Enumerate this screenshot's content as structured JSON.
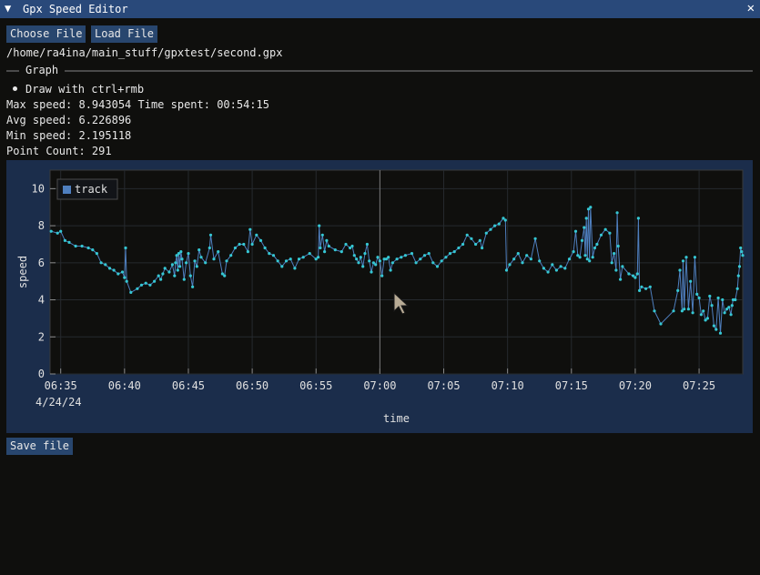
{
  "window": {
    "title": "Gpx Speed Editor",
    "collapse_icon": "triangle-down-icon",
    "close_icon": "close-icon"
  },
  "toolbar": {
    "choose_label": "Choose File",
    "load_label": "Load File"
  },
  "file_path": "/home/ra4ina/main_stuff/gpxtest/second.gpx",
  "section": {
    "label": "Graph"
  },
  "hint": "Draw with ctrl+rmb",
  "stats": {
    "max_line": "Max speed: 8.943054 Time spent: 00:54:15",
    "avg_line": "Avg speed: 6.226896",
    "min_line": "Min speed: 2.195118",
    "count_line": "Point Count: 291"
  },
  "save_label": "Save file",
  "colors": {
    "titlebar": "#29497a",
    "button": "#28466e",
    "plot_frame": "#1b2d4b",
    "plot_bg": "#0f0f0d",
    "line": "#4f7fbf",
    "marker": "#35c7d3"
  },
  "chart_data": {
    "type": "line",
    "xlabel": "time",
    "ylabel": "speed",
    "date_label": "4/24/24",
    "legend": {
      "entries": [
        "track"
      ],
      "placement": "top-left"
    },
    "grid": true,
    "x_tick_labels": [
      "06:35",
      "06:40",
      "06:45",
      "06:50",
      "06:55",
      "07:00",
      "07:05",
      "07:10",
      "07:15",
      "07:20",
      "07:25"
    ],
    "y_tick_labels": [
      "0",
      "2",
      "4",
      "6",
      "8",
      "10"
    ],
    "xlim": [
      "06:34:10",
      "07:28:25"
    ],
    "ylim": [
      0,
      11
    ],
    "series": [
      {
        "name": "track",
        "points": [
          [
            "06:34:15",
            7.7
          ],
          [
            "06:34:45",
            7.6
          ],
          [
            "06:35:00",
            7.7
          ],
          [
            "06:35:20",
            7.2
          ],
          [
            "06:35:40",
            7.1
          ],
          [
            "06:36:10",
            6.9
          ],
          [
            "06:36:40",
            6.9
          ],
          [
            "06:37:10",
            6.8
          ],
          [
            "06:37:30",
            6.7
          ],
          [
            "06:37:50",
            6.5
          ],
          [
            "06:38:10",
            6.0
          ],
          [
            "06:38:30",
            5.9
          ],
          [
            "06:38:50",
            5.7
          ],
          [
            "06:39:10",
            5.6
          ],
          [
            "06:39:30",
            5.4
          ],
          [
            "06:39:50",
            5.5
          ],
          [
            "06:40:00",
            5.2
          ],
          [
            "06:40:05",
            6.8
          ],
          [
            "06:40:10",
            5.0
          ],
          [
            "06:40:30",
            4.4
          ],
          [
            "06:41:00",
            4.6
          ],
          [
            "06:41:20",
            4.8
          ],
          [
            "06:41:40",
            4.9
          ],
          [
            "06:42:00",
            4.8
          ],
          [
            "06:42:20",
            5.0
          ],
          [
            "06:42:40",
            5.3
          ],
          [
            "06:42:50",
            5.1
          ],
          [
            "06:43:00",
            5.4
          ],
          [
            "06:43:10",
            5.7
          ],
          [
            "06:43:30",
            5.5
          ],
          [
            "06:43:45",
            5.9
          ],
          [
            "06:43:55",
            5.3
          ],
          [
            "06:44:00",
            6.0
          ],
          [
            "06:44:05",
            6.4
          ],
          [
            "06:44:10",
            5.6
          ],
          [
            "06:44:15",
            6.5
          ],
          [
            "06:44:20",
            5.8
          ],
          [
            "06:44:25",
            6.6
          ],
          [
            "06:44:30",
            6.2
          ],
          [
            "06:44:40",
            5.1
          ],
          [
            "06:44:50",
            6.0
          ],
          [
            "06:45:00",
            6.5
          ],
          [
            "06:45:10",
            5.3
          ],
          [
            "06:45:20",
            4.7
          ],
          [
            "06:45:30",
            6.1
          ],
          [
            "06:45:40",
            5.8
          ],
          [
            "06:45:50",
            6.7
          ],
          [
            "06:46:00",
            6.3
          ],
          [
            "06:46:20",
            6.0
          ],
          [
            "06:46:40",
            6.8
          ],
          [
            "06:46:45",
            7.5
          ],
          [
            "06:47:00",
            6.2
          ],
          [
            "06:47:20",
            6.6
          ],
          [
            "06:47:40",
            5.4
          ],
          [
            "06:47:50",
            5.3
          ],
          [
            "06:48:00",
            6.1
          ],
          [
            "06:48:20",
            6.4
          ],
          [
            "06:48:40",
            6.8
          ],
          [
            "06:49:00",
            7.0
          ],
          [
            "06:49:20",
            7.0
          ],
          [
            "06:49:40",
            6.6
          ],
          [
            "06:49:50",
            7.8
          ],
          [
            "06:50:00",
            7.0
          ],
          [
            "06:50:20",
            7.5
          ],
          [
            "06:50:40",
            7.2
          ],
          [
            "06:51:00",
            6.8
          ],
          [
            "06:51:20",
            6.5
          ],
          [
            "06:51:40",
            6.4
          ],
          [
            "06:52:00",
            6.1
          ],
          [
            "06:52:20",
            5.8
          ],
          [
            "06:52:40",
            6.1
          ],
          [
            "06:53:00",
            6.2
          ],
          [
            "06:53:20",
            5.7
          ],
          [
            "06:53:40",
            6.2
          ],
          [
            "06:54:00",
            6.3
          ],
          [
            "06:54:30",
            6.5
          ],
          [
            "06:55:00",
            6.2
          ],
          [
            "06:55:10",
            6.3
          ],
          [
            "06:55:15",
            8.0
          ],
          [
            "06:55:20",
            6.8
          ],
          [
            "06:55:30",
            7.5
          ],
          [
            "06:55:40",
            6.6
          ],
          [
            "06:55:50",
            7.2
          ],
          [
            "06:56:00",
            6.9
          ],
          [
            "06:56:30",
            6.7
          ],
          [
            "06:57:00",
            6.6
          ],
          [
            "06:57:20",
            7.0
          ],
          [
            "06:57:40",
            6.8
          ],
          [
            "06:57:50",
            6.9
          ],
          [
            "06:58:00",
            6.4
          ],
          [
            "06:58:10",
            6.2
          ],
          [
            "06:58:20",
            6.0
          ],
          [
            "06:58:30",
            6.3
          ],
          [
            "06:58:40",
            5.8
          ],
          [
            "06:58:50",
            6.5
          ],
          [
            "06:59:00",
            7.0
          ],
          [
            "06:59:10",
            6.1
          ],
          [
            "06:59:20",
            5.5
          ],
          [
            "06:59:30",
            6.0
          ],
          [
            "06:59:40",
            5.9
          ],
          [
            "06:59:50",
            6.3
          ],
          [
            "07:00:00",
            6.1
          ],
          [
            "07:00:10",
            5.3
          ],
          [
            "07:00:20",
            6.2
          ],
          [
            "07:00:30",
            6.2
          ],
          [
            "07:00:40",
            6.3
          ],
          [
            "07:00:50",
            5.6
          ],
          [
            "07:01:00",
            6.0
          ],
          [
            "07:01:20",
            6.2
          ],
          [
            "07:01:40",
            6.3
          ],
          [
            "07:02:00",
            6.4
          ],
          [
            "07:02:30",
            6.5
          ],
          [
            "07:02:50",
            6.0
          ],
          [
            "07:03:10",
            6.2
          ],
          [
            "07:03:30",
            6.4
          ],
          [
            "07:03:50",
            6.5
          ],
          [
            "07:04:10",
            6.0
          ],
          [
            "07:04:30",
            5.8
          ],
          [
            "07:04:50",
            6.1
          ],
          [
            "07:05:10",
            6.3
          ],
          [
            "07:05:30",
            6.5
          ],
          [
            "07:05:50",
            6.6
          ],
          [
            "07:06:10",
            6.8
          ],
          [
            "07:06:30",
            7.0
          ],
          [
            "07:06:50",
            7.5
          ],
          [
            "07:07:10",
            7.3
          ],
          [
            "07:07:30",
            7.0
          ],
          [
            "07:07:50",
            7.2
          ],
          [
            "07:08:00",
            6.8
          ],
          [
            "07:08:20",
            7.6
          ],
          [
            "07:08:40",
            7.8
          ],
          [
            "07:09:00",
            8.0
          ],
          [
            "07:09:20",
            8.1
          ],
          [
            "07:09:40",
            8.4
          ],
          [
            "07:09:50",
            8.3
          ],
          [
            "07:09:55",
            5.6
          ],
          [
            "07:10:10",
            5.9
          ],
          [
            "07:10:30",
            6.2
          ],
          [
            "07:10:50",
            6.5
          ],
          [
            "07:11:10",
            6.0
          ],
          [
            "07:11:30",
            6.4
          ],
          [
            "07:11:50",
            6.2
          ],
          [
            "07:12:10",
            7.3
          ],
          [
            "07:12:30",
            6.1
          ],
          [
            "07:12:50",
            5.7
          ],
          [
            "07:13:10",
            5.5
          ],
          [
            "07:13:30",
            5.9
          ],
          [
            "07:13:50",
            5.6
          ],
          [
            "07:14:10",
            5.8
          ],
          [
            "07:14:30",
            5.7
          ],
          [
            "07:14:50",
            6.2
          ],
          [
            "07:15:10",
            6.6
          ],
          [
            "07:15:20",
            7.7
          ],
          [
            "07:15:30",
            6.4
          ],
          [
            "07:15:40",
            6.3
          ],
          [
            "07:15:50",
            7.2
          ],
          [
            "07:16:00",
            7.9
          ],
          [
            "07:16:05",
            6.4
          ],
          [
            "07:16:10",
            8.4
          ],
          [
            "07:16:15",
            6.2
          ],
          [
            "07:16:20",
            8.9
          ],
          [
            "07:16:25",
            6.1
          ],
          [
            "07:16:30",
            9.0
          ],
          [
            "07:16:40",
            6.3
          ],
          [
            "07:16:50",
            6.8
          ],
          [
            "07:17:00",
            7.0
          ],
          [
            "07:17:20",
            7.5
          ],
          [
            "07:17:40",
            7.8
          ],
          [
            "07:18:00",
            7.6
          ],
          [
            "07:18:10",
            6.0
          ],
          [
            "07:18:20",
            6.5
          ],
          [
            "07:18:30",
            5.6
          ],
          [
            "07:18:35",
            8.7
          ],
          [
            "07:18:40",
            6.9
          ],
          [
            "07:18:50",
            5.1
          ],
          [
            "07:19:00",
            5.8
          ],
          [
            "07:19:30",
            5.4
          ],
          [
            "07:19:50",
            5.3
          ],
          [
            "07:20:00",
            5.2
          ],
          [
            "07:20:10",
            5.4
          ],
          [
            "07:20:15",
            8.4
          ],
          [
            "07:20:20",
            4.5
          ],
          [
            "07:20:30",
            4.7
          ],
          [
            "07:20:50",
            4.6
          ],
          [
            "07:21:10",
            4.7
          ],
          [
            "07:21:30",
            3.4
          ],
          [
            "07:22:00",
            2.7
          ],
          [
            "07:23:00",
            3.4
          ],
          [
            "07:23:20",
            4.5
          ],
          [
            "07:23:30",
            5.6
          ],
          [
            "07:23:40",
            3.4
          ],
          [
            "07:23:45",
            6.1
          ],
          [
            "07:23:50",
            3.5
          ],
          [
            "07:24:00",
            6.3
          ],
          [
            "07:24:10",
            3.5
          ],
          [
            "07:24:20",
            5.0
          ],
          [
            "07:24:30",
            3.3
          ],
          [
            "07:24:40",
            6.3
          ],
          [
            "07:24:50",
            4.3
          ],
          [
            "07:25:00",
            4.1
          ],
          [
            "07:25:10",
            3.2
          ],
          [
            "07:25:20",
            3.4
          ],
          [
            "07:25:30",
            2.9
          ],
          [
            "07:25:40",
            3.0
          ],
          [
            "07:25:50",
            4.2
          ],
          [
            "07:26:00",
            3.7
          ],
          [
            "07:26:10",
            2.6
          ],
          [
            "07:26:20",
            2.4
          ],
          [
            "07:26:30",
            4.1
          ],
          [
            "07:26:40",
            2.2
          ],
          [
            "07:26:50",
            4.0
          ],
          [
            "07:27:00",
            3.3
          ],
          [
            "07:27:10",
            3.5
          ],
          [
            "07:27:20",
            3.6
          ],
          [
            "07:27:30",
            3.2
          ],
          [
            "07:27:35",
            3.7
          ],
          [
            "07:27:40",
            4.0
          ],
          [
            "07:27:50",
            4.0
          ],
          [
            "07:28:00",
            4.6
          ],
          [
            "07:28:05",
            5.3
          ],
          [
            "07:28:10",
            5.8
          ],
          [
            "07:28:15",
            6.8
          ],
          [
            "07:28:20",
            6.6
          ],
          [
            "07:28:25",
            6.4
          ]
        ]
      }
    ]
  }
}
